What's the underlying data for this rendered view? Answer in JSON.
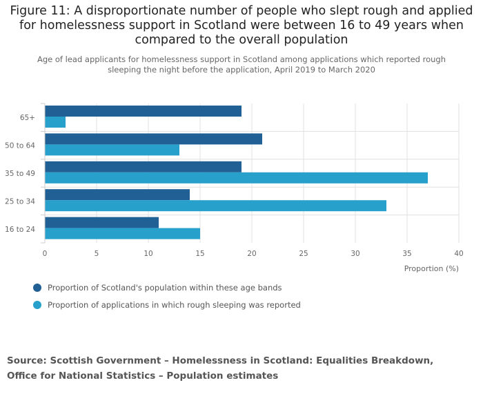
{
  "title": "Figure 11: A disproportionate number of people who slept rough and applied for homelessness support in Scotland were between 16 to 49 years when compared to the overall population",
  "subtitle": "Age of lead applicants for homelessness support in Scotland among applications which reported rough sleeping the night before the application, April 2019 to March 2020",
  "source": "Source: Scottish Government – Homelessness in Scotland: Equalities Breakdown, Office for National Statistics – Population estimates",
  "colors": {
    "population": "#206095",
    "applications": "#27a0cc",
    "grid": "#e0e0e0",
    "axis": "#cccccc",
    "text": "#666666"
  },
  "chart_data": {
    "type": "bar",
    "orientation": "horizontal",
    "categories": [
      "65+",
      "50 to 64",
      "35 to 49",
      "25 to 34",
      "16 to 24"
    ],
    "series": [
      {
        "name": "Proportion of Scotland's population within these age bands",
        "color": "#206095",
        "values": [
          19,
          21,
          19,
          14,
          11
        ]
      },
      {
        "name": "Proportion of applications in which rough sleeping was reported",
        "color": "#27a0cc",
        "values": [
          2,
          13,
          37,
          33,
          15
        ]
      }
    ],
    "xlim": [
      0,
      40
    ],
    "xticks": [
      0,
      5,
      10,
      15,
      20,
      25,
      30,
      35,
      40
    ],
    "xlabel": "Proportion (%)",
    "ylabel": "",
    "grid": true,
    "legend": "bottom-left"
  }
}
